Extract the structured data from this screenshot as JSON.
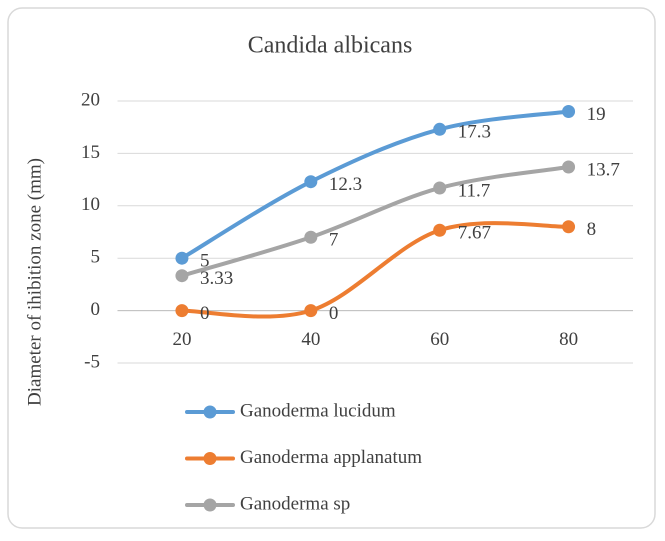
{
  "chart_data": {
    "type": "line",
    "title": "Candida albicans",
    "y_label": "Diameter of ihibition zone (mm)",
    "categories": [
      "20",
      "40",
      "60",
      "80"
    ],
    "series": [
      {
        "name": "Ganoderma lucidum",
        "color": "#5b9bd5",
        "values": [
          5,
          12.3,
          17.3,
          19
        ]
      },
      {
        "name": "Ganoderma applanatum",
        "color": "#ed7d31",
        "values": [
          0,
          0,
          7.67,
          8
        ]
      },
      {
        "name": "Ganoderma sp",
        "color": "#a5a5a5",
        "values": [
          3.33,
          7,
          11.7,
          13.7
        ]
      }
    ],
    "ylim": [
      -5,
      20
    ],
    "yticks": [
      -5,
      0,
      5,
      10,
      15,
      20
    ],
    "grid": true,
    "smooth": true,
    "legend": "bottom"
  }
}
